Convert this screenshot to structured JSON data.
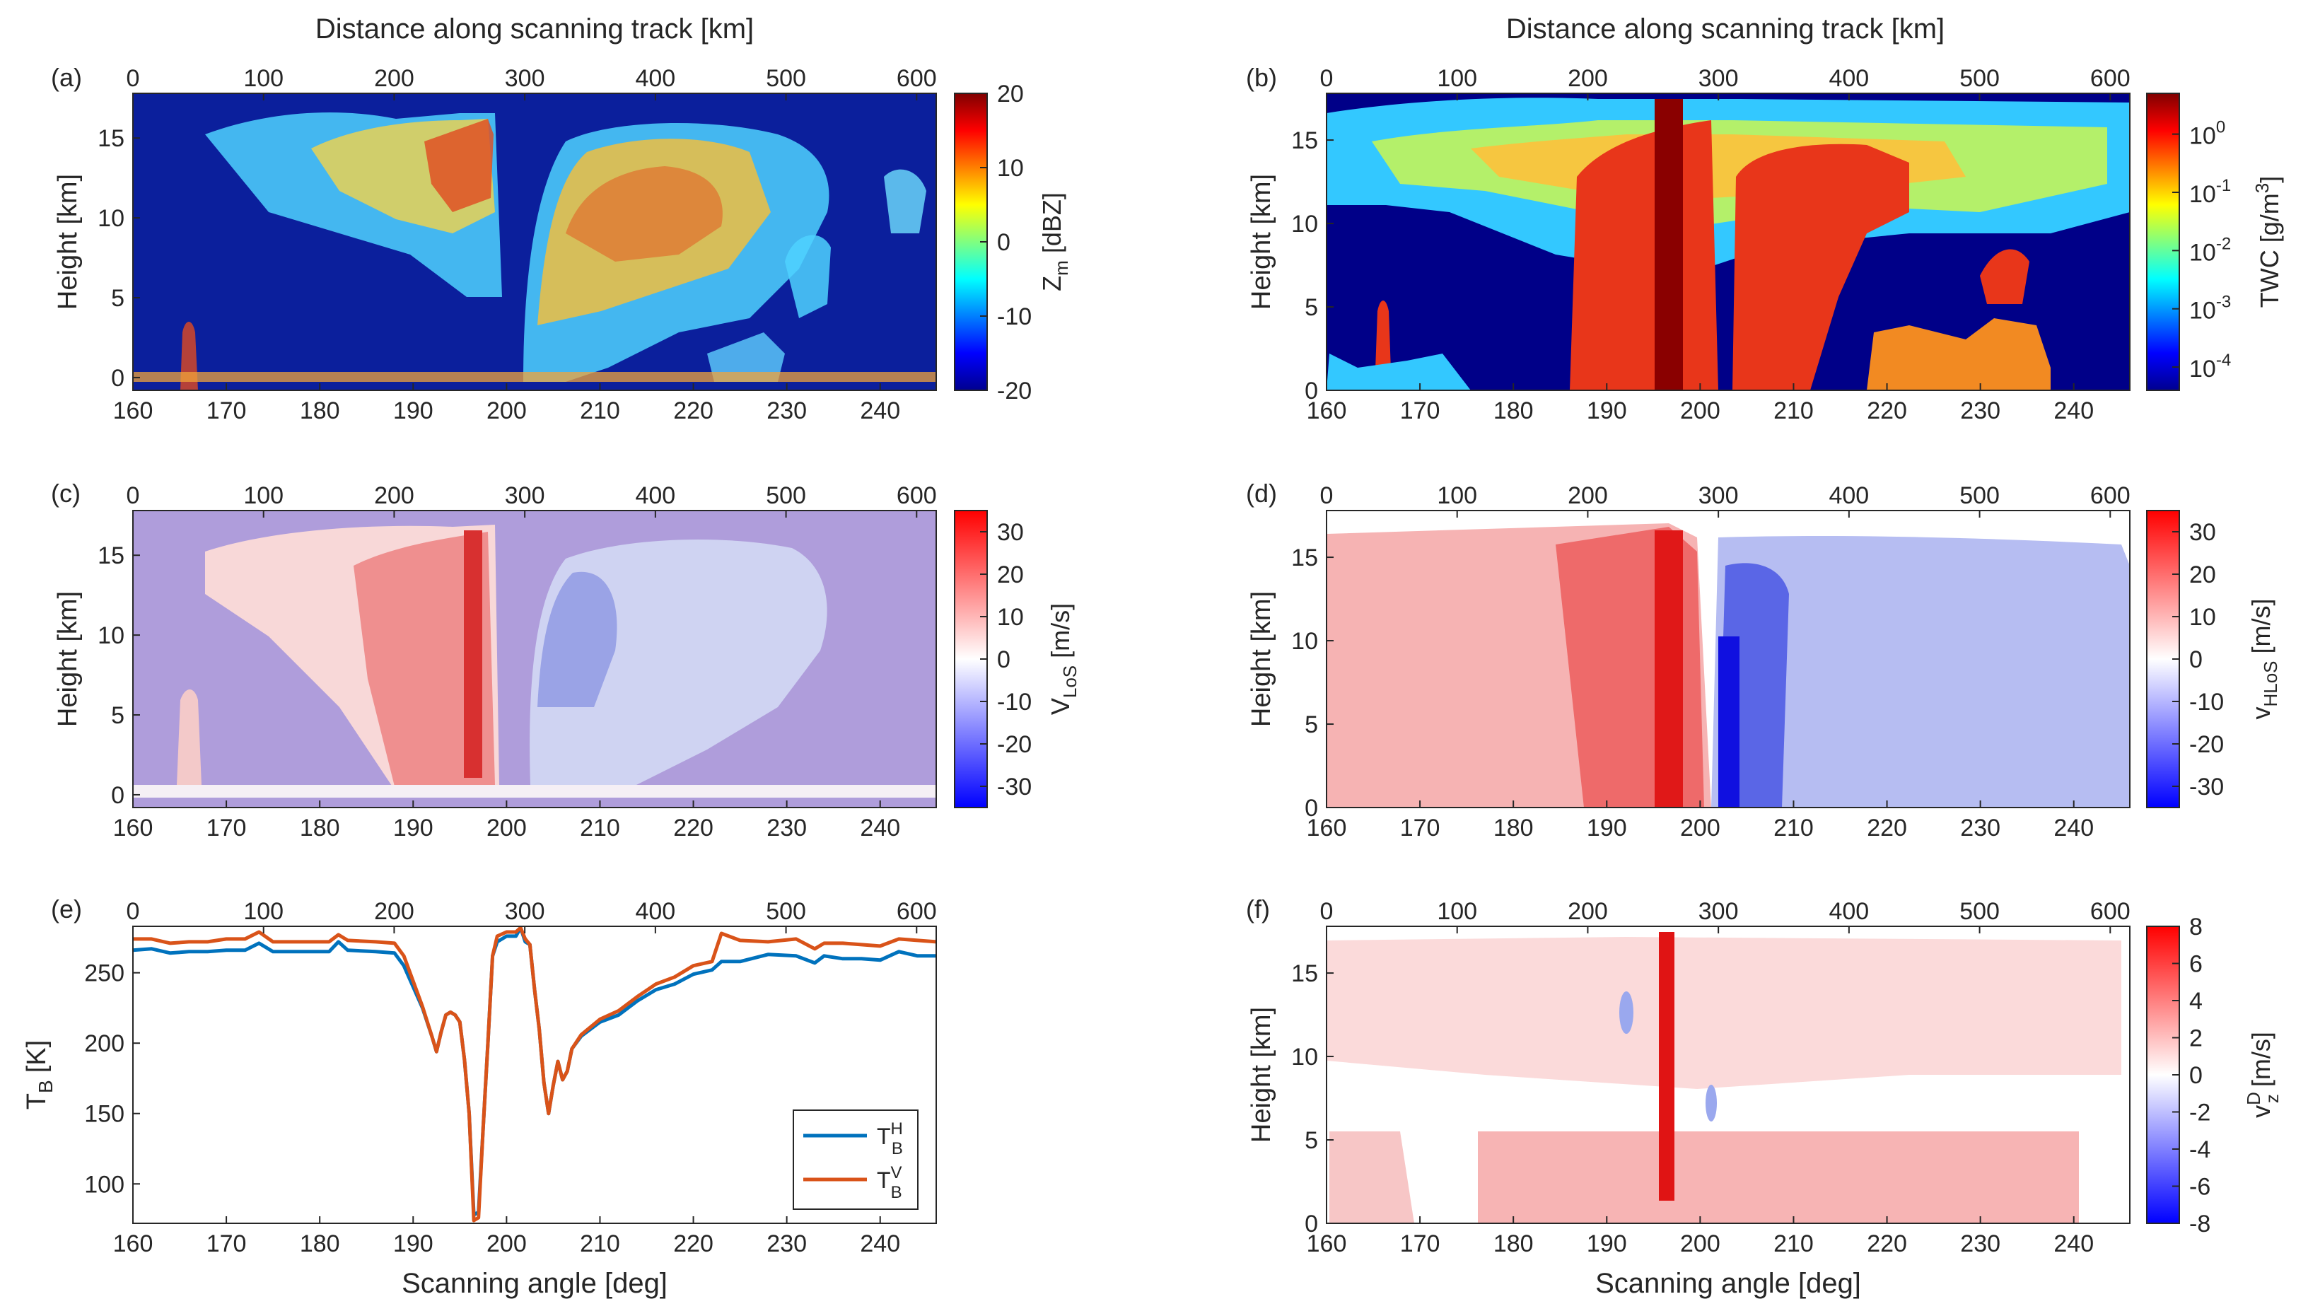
{
  "figure": {
    "top_title": "Distance along scanning track [km]",
    "x_title": "Scanning angle [deg]",
    "height_label": "Height [km]"
  },
  "chart_data": [
    {
      "id": "a",
      "panel_label": "(a)",
      "type": "heatmap",
      "title": "Distance along scanning track [km]",
      "xlabel": "",
      "ylabel": "Height [km]",
      "xlim": [
        160,
        246
      ],
      "ylim": [
        -0.8,
        17.8
      ],
      "xticks": [
        160,
        170,
        180,
        190,
        200,
        210,
        220,
        230,
        240
      ],
      "yticks": [
        0,
        5,
        10,
        15
      ],
      "top_xlim": [
        0,
        615
      ],
      "top_ticks": [
        0,
        100,
        200,
        300,
        400,
        500,
        600
      ],
      "colorbar": {
        "label": "Z",
        "label_sub": "m",
        "label_unit": "[dBZ]",
        "scale": "linear",
        "cmap": "jet",
        "range": [
          -20,
          20
        ],
        "ticks": [
          20,
          10,
          0,
          -10,
          -20
        ]
      }
    },
    {
      "id": "b",
      "panel_label": "(b)",
      "type": "heatmap",
      "title": "Distance along scanning track [km]",
      "xlabel": "",
      "ylabel": "Height [km]",
      "xlim": [
        160,
        246
      ],
      "ylim": [
        0,
        17.8
      ],
      "xticks": [
        160,
        170,
        180,
        190,
        200,
        210,
        220,
        230,
        240
      ],
      "yticks": [
        0,
        5,
        10,
        15
      ],
      "top_xlim": [
        0,
        615
      ],
      "top_ticks": [
        0,
        100,
        200,
        300,
        400,
        500,
        600
      ],
      "colorbar": {
        "label": "TWC",
        "label_unit": "[g/m",
        "label_sup": "3",
        "label_end": "]",
        "scale": "log",
        "cmap": "jet",
        "range": [
          -4.4,
          0.7
        ],
        "ticks": [
          {
            "base": "10",
            "exp": "0",
            "value": 0
          },
          {
            "base": "10",
            "exp": "-1",
            "value": -1
          },
          {
            "base": "10",
            "exp": "-2",
            "value": -2
          },
          {
            "base": "10",
            "exp": "-3",
            "value": -3
          },
          {
            "base": "10",
            "exp": "-4",
            "value": -4
          }
        ]
      }
    },
    {
      "id": "c",
      "panel_label": "(c)",
      "type": "heatmap",
      "xlabel": "",
      "ylabel": "Height [km]",
      "xlim": [
        160,
        246
      ],
      "ylim": [
        -0.8,
        17.8
      ],
      "xticks": [
        160,
        170,
        180,
        190,
        200,
        210,
        220,
        230,
        240
      ],
      "yticks": [
        0,
        5,
        10,
        15
      ],
      "top_xlim": [
        0,
        615
      ],
      "top_ticks": [
        0,
        100,
        200,
        300,
        400,
        500,
        600
      ],
      "colorbar": {
        "label": "V",
        "label_sub": "LoS",
        "label_unit": "[m/s]",
        "scale": "linear",
        "cmap": "bwr",
        "range": [
          -35,
          35
        ],
        "ticks": [
          30,
          20,
          10,
          0,
          -10,
          -20,
          -30
        ]
      }
    },
    {
      "id": "d",
      "panel_label": "(d)",
      "type": "heatmap",
      "xlabel": "",
      "ylabel": "Height [km]",
      "xlim": [
        160,
        246
      ],
      "ylim": [
        0,
        17.8
      ],
      "xticks": [
        160,
        170,
        180,
        190,
        200,
        210,
        220,
        230,
        240
      ],
      "yticks": [
        0,
        5,
        10,
        15
      ],
      "top_xlim": [
        0,
        615
      ],
      "top_ticks": [
        0,
        100,
        200,
        300,
        400,
        500,
        600
      ],
      "colorbar": {
        "label": "v",
        "label_sub": "HLoS",
        "label_unit": "[m/s]",
        "scale": "linear",
        "cmap": "bwr",
        "range": [
          -35,
          35
        ],
        "ticks": [
          30,
          20,
          10,
          0,
          -10,
          -20,
          -30
        ]
      }
    },
    {
      "id": "e",
      "panel_label": "(e)",
      "type": "line",
      "xlabel": "Scanning angle [deg]",
      "ylabel": "T",
      "ylabel_sub": "B",
      "ylabel_unit": "[K]",
      "xlim": [
        160,
        246
      ],
      "ylim": [
        72,
        283
      ],
      "xticks": [
        160,
        170,
        180,
        190,
        200,
        210,
        220,
        230,
        240
      ],
      "yticks": [
        100,
        150,
        200,
        250
      ],
      "top_xlim": [
        0,
        615
      ],
      "top_ticks": [
        0,
        100,
        200,
        300,
        400,
        500,
        600
      ],
      "legend_position": "bottom-right",
      "series": [
        {
          "name": "T",
          "name_sub": "B",
          "name_sup": "H",
          "color": "#0072BD",
          "x": [
            160,
            162,
            164,
            166,
            168,
            170,
            172,
            173.5,
            175,
            178,
            181,
            182,
            183,
            186,
            188,
            189,
            190,
            191,
            192,
            192.5,
            193,
            193.5,
            194,
            194.5,
            195,
            195.5,
            196,
            196.5,
            197,
            197.5,
            198,
            198.5,
            199,
            200,
            201,
            201.5,
            202,
            202.5,
            203,
            203.5,
            204,
            204.5,
            205,
            205.5,
            206,
            206.5,
            207,
            208,
            210,
            212,
            214,
            216,
            218,
            220,
            222,
            223,
            225,
            228,
            231,
            233,
            234,
            236,
            238,
            240,
            242,
            244,
            246
          ],
          "y": [
            266,
            267,
            264,
            265,
            265,
            266,
            266,
            271,
            265,
            265,
            265,
            272,
            266,
            265,
            264,
            255,
            240,
            225,
            205,
            194,
            208,
            220,
            222,
            220,
            215,
            188,
            150,
            78,
            80,
            140,
            200,
            262,
            272,
            276,
            276,
            282,
            272,
            270,
            238,
            210,
            172,
            150,
            170,
            187,
            174,
            180,
            196,
            205,
            215,
            220,
            230,
            238,
            242,
            249,
            252,
            258,
            258,
            263,
            262,
            257,
            262,
            260,
            260,
            259,
            265,
            262,
            262
          ]
        },
        {
          "name": "T",
          "name_sub": "B",
          "name_sup": "V",
          "color": "#D95319",
          "x": [
            160,
            162,
            164,
            166,
            168,
            170,
            172,
            173.5,
            175,
            178,
            181,
            182,
            183,
            186,
            188,
            189,
            190,
            191,
            192,
            192.5,
            193,
            193.5,
            194,
            194.5,
            195,
            195.5,
            196,
            196.5,
            197,
            197.5,
            198,
            198.5,
            199,
            200,
            201,
            201.5,
            202,
            202.5,
            203,
            203.5,
            204,
            204.5,
            205,
            205.5,
            206,
            206.5,
            207,
            208,
            210,
            212,
            214,
            216,
            218,
            220,
            222,
            223,
            225,
            228,
            231,
            233,
            234,
            236,
            238,
            240,
            242,
            244,
            246
          ],
          "y": [
            274,
            274,
            271,
            272,
            272,
            274,
            274,
            279,
            272,
            272,
            272,
            277,
            273,
            272,
            271,
            262,
            244,
            226,
            205,
            194,
            208,
            220,
            222,
            220,
            215,
            188,
            150,
            74,
            76,
            140,
            200,
            262,
            276,
            279,
            279,
            282,
            274,
            270,
            238,
            210,
            172,
            150,
            170,
            187,
            174,
            180,
            196,
            206,
            217,
            223,
            233,
            242,
            247,
            255,
            258,
            278,
            273,
            272,
            274,
            267,
            271,
            271,
            270,
            269,
            274,
            273,
            272
          ]
        }
      ]
    },
    {
      "id": "f",
      "panel_label": "(f)",
      "type": "heatmap",
      "xlabel": "Scanning angle [deg]",
      "ylabel": "Height [km]",
      "xlim": [
        160,
        246
      ],
      "ylim": [
        0,
        17.8
      ],
      "xticks": [
        160,
        170,
        180,
        190,
        200,
        210,
        220,
        230,
        240
      ],
      "yticks": [
        0,
        5,
        10,
        15
      ],
      "top_xlim": [
        0,
        615
      ],
      "top_ticks": [
        0,
        100,
        200,
        300,
        400,
        500,
        600
      ],
      "colorbar": {
        "label": "v",
        "label_sub": "z",
        "label_sup": "D",
        "label_unit": "[m/s]",
        "scale": "linear",
        "cmap": "bwr",
        "range": [
          -8,
          8
        ],
        "ticks": [
          8,
          6,
          4,
          2,
          0,
          -2,
          -4,
          -6,
          -8
        ]
      }
    }
  ]
}
